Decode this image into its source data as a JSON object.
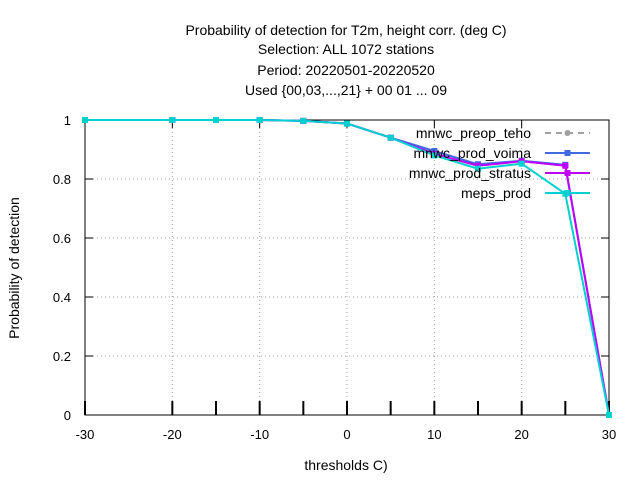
{
  "chart_data": {
    "type": "line",
    "title_lines": [
      "Probability of detection  for T2m, height corr. (deg C)",
      "Selection: ALL    1072 stations",
      "Period: 20220501-20220520",
      "Used {00,03,...,21} + 00 01 ... 09"
    ],
    "xlabel": "thresholds C)",
    "ylabel": "Probability of detection",
    "xlim": [
      -30,
      30
    ],
    "ylim": [
      0,
      1
    ],
    "xticks": [
      "-30",
      "-20",
      "-10",
      "0",
      "10",
      "20",
      "30"
    ],
    "yticks": [
      "0",
      "0.2",
      "0.4",
      "0.6",
      "0.8",
      "1"
    ],
    "grid": true,
    "legend_position": "top-right",
    "x": [
      -30,
      -20,
      -15,
      -10,
      -5,
      0,
      5,
      10,
      15,
      20,
      25,
      30
    ],
    "series": [
      {
        "name": "mnwc_preop_teho",
        "color": "#a0a0a0",
        "dashed": true,
        "marker": "circle",
        "values": [
          1.0,
          1.0,
          1.0,
          1.0,
          0.997,
          0.988,
          0.94,
          0.89,
          0.845,
          0.86,
          0.845,
          0.0
        ]
      },
      {
        "name": "mnwc_prod_voima",
        "color": "#4169e1",
        "dashed": false,
        "marker": "square",
        "values": [
          1.0,
          1.0,
          1.0,
          1.0,
          0.997,
          0.988,
          0.94,
          0.895,
          0.85,
          0.862,
          0.848,
          0.0
        ]
      },
      {
        "name": "mnwc_prod_stratus",
        "color": "#c000ff",
        "dashed": false,
        "marker": "square",
        "values": [
          1.0,
          1.0,
          1.0,
          1.0,
          0.997,
          0.988,
          0.94,
          0.885,
          0.845,
          0.86,
          0.845,
          0.0
        ]
      },
      {
        "name": "meps_prod",
        "color": "#00d0d0",
        "dashed": false,
        "marker": "square",
        "values": [
          1.0,
          1.0,
          1.0,
          1.0,
          0.997,
          0.988,
          0.94,
          0.88,
          0.835,
          0.852,
          0.75,
          0.0
        ]
      }
    ]
  }
}
